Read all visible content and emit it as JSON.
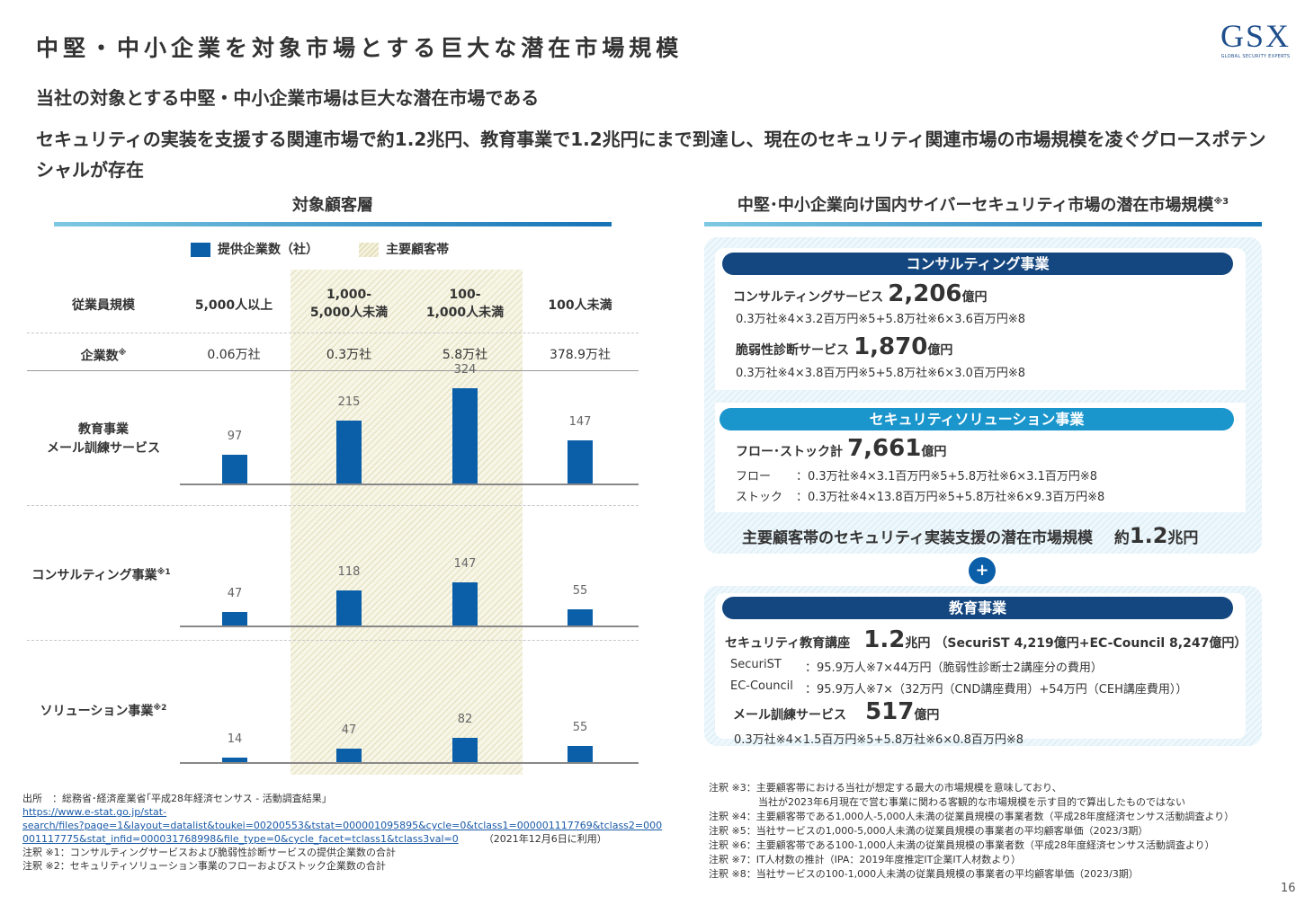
{
  "page": {
    "title": "中堅・中小企業を対象市場とする巨大な潜在市場規模",
    "headline": "当社の対象とする中堅・中小企業市場は巨大な潜在市場である",
    "summary": "セキュリティの実装を支援する関連市場で約1.2兆円、教育事業で1.2兆円にまで到達し、現在のセキュリティ関連市場の市場規模を凌ぐグロースポテンシャルが存在",
    "page_number": "16"
  },
  "logo": {
    "mark": "GSX",
    "subtitle": "GLOBAL SECURITY EXPERTS"
  },
  "left": {
    "section_title": "対象顧客層",
    "legend": {
      "bar": "提供企業数（社）",
      "band": "主要顧客帯"
    },
    "header_label": "従業員規模",
    "columns": [
      "5,000人以上",
      "1,000-\n5,000人未満",
      "100-\n1,000人未満",
      "100人未満"
    ],
    "count_label": "企業数",
    "count_note": "※",
    "counts": [
      "0.06万社",
      "0.3万社",
      "5.8万社",
      "378.9万社"
    ],
    "rows": [
      {
        "label": "教育事業\nメール訓練サービス",
        "note": ""
      },
      {
        "label": "コンサルティング事業",
        "note": "※1"
      },
      {
        "label": "ソリューション事業",
        "note": "※2"
      }
    ]
  },
  "chart_data": {
    "type": "bar",
    "categories": [
      "5,000人以上",
      "1,000-5,000人未満",
      "100-1,000人未満",
      "100人未満"
    ],
    "series": [
      {
        "name": "教育事業 メール訓練サービス",
        "values": [
          97,
          215,
          324,
          147
        ]
      },
      {
        "name": "コンサルティング事業",
        "values": [
          47,
          118,
          147,
          55
        ]
      },
      {
        "name": "ソリューション事業",
        "values": [
          14,
          47,
          82,
          55
        ]
      }
    ],
    "highlight_categories": [
      "1,000-5,000人未満",
      "100-1,000人未満"
    ]
  },
  "source": {
    "line1": "出所　：総務省･経済産業省｢平成28年経済センサス - 活動調査結果｣",
    "url1": "https://www.e-stat.go.jp/stat-",
    "url2": "search/files?page=1&layout=datalist&toukei=00200553&tstat=000001095895&cycle=0&tclass1=000001117769&tclass2=000",
    "url3": "001117775&stat_infid=000031768998&file_type=0&cycle_facet=tclass1&tclass3val=0",
    "date": "（2021年12月6日に利用）",
    "note1": "注釈 ※1：コンサルティングサービスおよび脆弱性診断サービスの提供企業数の合計",
    "note2": "注釈 ※2：セキュリティソリューション事業のフローおよびストック企業数の合計"
  },
  "right": {
    "section_title": "中堅･中小企業向け国内サイバーセキュリティ市場の潜在市場規模",
    "section_note": "※3",
    "consulting": {
      "pill": "コンサルティング事業",
      "item1_label": "コンサルティングサービス",
      "item1_value": "2,206",
      "item1_unit": "億円",
      "item1_calc": "0.3万社※4×3.2百万円※5+5.8万社※6×3.6百万円※8",
      "item2_label": "脆弱性診断サービス",
      "item2_value": "1,870",
      "item2_unit": "億円",
      "item2_calc": "0.3万社※4×3.8百万円※5+5.8万社※6×3.0百万円※8"
    },
    "solution": {
      "pill": "セキュリティソリューション事業",
      "label": "フロー･ストック計",
      "value": "7,661",
      "unit": "億円",
      "flow_label": "フロー",
      "flow_calc": "：0.3万社※4×3.1百万円※5+5.8万社※6×3.1百万円※8",
      "stock_label": "ストック",
      "stock_calc": "：0.3万社※4×13.8百万円※5+5.8万社※6×9.3百万円※8"
    },
    "total": {
      "label": "主要顧客帯のセキュリティ実装支援の潜在市場規模",
      "prefix": "約",
      "value": "1.2",
      "unit": "兆円"
    },
    "plus": "+",
    "education": {
      "pill": "教育事業",
      "label": "セキュリティ教育講座",
      "value": "1.2",
      "unit": "兆円",
      "detail": "（SecuriST 4,219億円+EC-Council 8,247億円）",
      "securist_label": "SecuriST",
      "securist_calc": "：95.9万人※7×44万円（脆弱性診断士2講座分の費用）",
      "ec_label": "EC-Council",
      "ec_calc": "：95.9万人※7×（32万円（CND講座費用）+54万円（CEH講座費用））",
      "mail_label": "メール訓練サービス",
      "mail_value": "517",
      "mail_unit": "億円",
      "mail_calc": "0.3万社※4×1.5百万円※5+5.8万社※6×0.8百万円※8"
    },
    "notes": [
      "注釈 ※3：主要顧客帯における当社が想定する最大の市場規模を意味しており、",
      "　　　　　当社が2023年6月現在で営む事業に関わる客観的な市場規模を示す目的で算出したものではない",
      "注釈 ※4：主要顧客帯である1,000人-5,000人未満の従業員規模の事業者数（平成28年度経済センサス活動調査より）",
      "注釈 ※5：当社サービスの1,000-5,000人未満の従業員規模の事業者の平均顧客単価（2023/3期）",
      "注釈 ※6：主要顧客帯である100-1,000人未満の従業員規模の事業者数（平成28年度経済センサス活動調査より）",
      "注釈 ※7：IT人材数の推計（IPA：2019年度推定IT企業IT人材数より）",
      "注釈 ※8：当社サービスの100-1,000人未満の従業員規模の事業者の平均顧客単価（2023/3期）"
    ]
  }
}
